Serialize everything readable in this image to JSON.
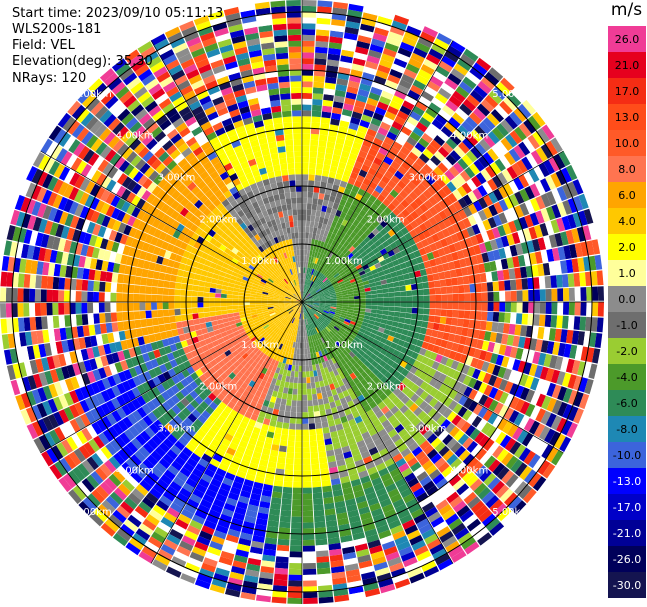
{
  "header": {
    "start_time": "Start time: 2023/09/10 05:11:13",
    "instrument": "WLS200s-181",
    "field": "Field: VEL",
    "elevation": "Elevation(deg): 35.30",
    "nrays": "NRays: 120"
  },
  "ring_labels": [
    "1.00km",
    "2.00km",
    "3.00km",
    "4.00km",
    "5.00km"
  ],
  "colorbar": {
    "title": "m/s",
    "levels": [
      {
        "label": "26.0",
        "color": "#f03c96"
      },
      {
        "label": "21.0",
        "color": "#e6001e"
      },
      {
        "label": "17.0",
        "color": "#f52d14"
      },
      {
        "label": "13.0",
        "color": "#ff4d1a"
      },
      {
        "label": "10.0",
        "color": "#ff5a28"
      },
      {
        "label": "8.0",
        "color": "#ff7450"
      },
      {
        "label": "6.0",
        "color": "#ffa500"
      },
      {
        "label": "4.0",
        "color": "#ffc800"
      },
      {
        "label": "2.0",
        "color": "#ffff00"
      },
      {
        "label": "1.0",
        "color": "#ffff9b"
      },
      {
        "label": "0.0",
        "color": "#8c8c8c"
      },
      {
        "label": "-1.0",
        "color": "#6e6e6e"
      },
      {
        "label": "-2.0",
        "color": "#9acd32"
      },
      {
        "label": "-4.0",
        "color": "#4c9a2a"
      },
      {
        "label": "-6.0",
        "color": "#2e8b57"
      },
      {
        "label": "-8.0",
        "color": "#1e88b4"
      },
      {
        "label": "-10.0",
        "color": "#3c64dc"
      },
      {
        "label": "-13.0",
        "color": "#0000ff"
      },
      {
        "label": "-17.0",
        "color": "#0000c8"
      },
      {
        "label": "-21.0",
        "color": "#000096"
      },
      {
        "label": "-26.0",
        "color": "#00005a"
      },
      {
        "label": "-30.0",
        "color": "#141450"
      }
    ]
  }
}
